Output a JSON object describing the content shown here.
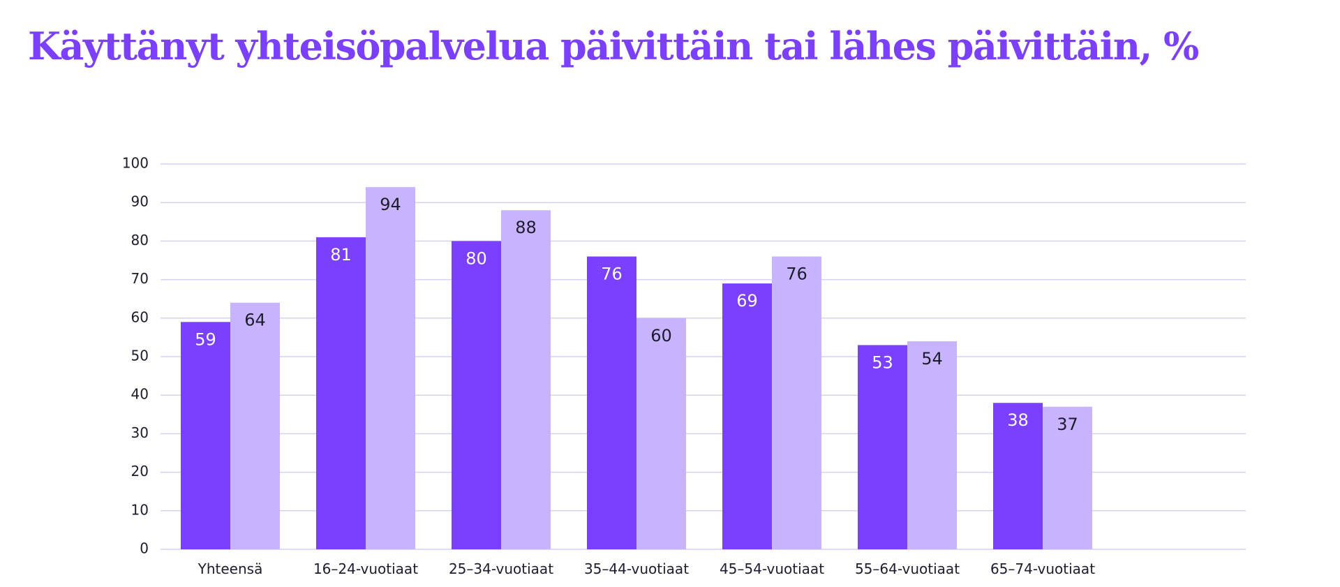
{
  "chart_data": {
    "type": "bar",
    "title": "Käyttänyt yhteisöpalvelua päivittäin tai lähes päivittäin, %",
    "categories": [
      "Yhteensä",
      "16–24-vuotiaat",
      "25–34-vuotiaat",
      "35–44-vuotiaat",
      "45–54-vuotiaat",
      "55–64-vuotiaat",
      "65–74-vuotiaat"
    ],
    "series": [
      {
        "color": "#7b3ffe",
        "label_color": "#ffffff",
        "values": [
          59,
          81,
          80,
          76,
          69,
          53,
          38
        ]
      },
      {
        "color": "#c8b3fe",
        "label_color": "#1c1c2e",
        "values": [
          64,
          94,
          88,
          60,
          76,
          54,
          37
        ]
      }
    ],
    "ylim": [
      0,
      100
    ],
    "yticks": [
      0,
      10,
      20,
      30,
      40,
      50,
      60,
      70,
      80,
      90,
      100
    ],
    "grid": true
  }
}
